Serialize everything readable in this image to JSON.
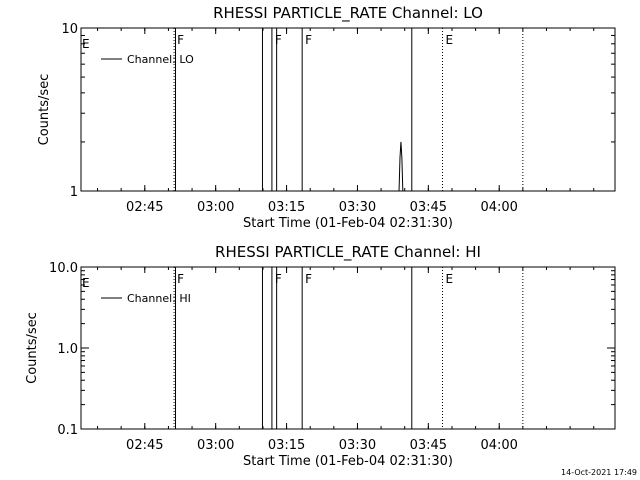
{
  "chart_data": [
    {
      "type": "line",
      "title": "RHESSI PARTICLE_RATE Channel: LO",
      "xlabel": "Start Time (01-Feb-04 02:31:30)",
      "ylabel": "Counts/sec",
      "x_unit": "minutes after 02:31:30",
      "xlim": [
        0,
        113
      ],
      "ylim": [
        1,
        10
      ],
      "yscale": "log",
      "x_ticks": [
        {
          "value": 13.5,
          "label": "02:45"
        },
        {
          "value": 28.5,
          "label": "03:00"
        },
        {
          "value": 43.5,
          "label": "03:15"
        },
        {
          "value": 58.5,
          "label": "03:30"
        },
        {
          "value": 73.5,
          "label": "03:45"
        },
        {
          "value": 88.5,
          "label": "04:00"
        }
      ],
      "y_ticks": [
        {
          "value": 1,
          "label": "1"
        },
        {
          "value": 10,
          "label": "10"
        }
      ],
      "legend": {
        "position": "top-left",
        "entries": [
          "Channel: LO"
        ]
      },
      "series": [
        {
          "name": "Channel: LO",
          "x": [
            67.3,
            67.5,
            67.7,
            67.9,
            68.1
          ],
          "y": [
            1,
            1.6,
            2.0,
            1.6,
            1
          ]
        }
      ],
      "event_lines": [
        {
          "x": 19.7,
          "style": "dotted",
          "label": "F"
        },
        {
          "x": 20.0,
          "style": "solid",
          "label": ""
        },
        {
          "x": 38.4,
          "style": "solid",
          "label": ""
        },
        {
          "x": 40.4,
          "style": "solid",
          "label": "F"
        },
        {
          "x": 41.4,
          "style": "solid",
          "label": ""
        },
        {
          "x": 46.8,
          "style": "solid",
          "label": "F"
        },
        {
          "x": 70.0,
          "style": "solid",
          "label": ""
        },
        {
          "x": 76.5,
          "style": "dotted",
          "label": "E"
        },
        {
          "x": 93.5,
          "style": "dotted",
          "label": ""
        }
      ],
      "edge_label": "E"
    },
    {
      "type": "line",
      "title": "RHESSI PARTICLE_RATE Channel: HI",
      "xlabel": "Start Time (01-Feb-04 02:31:30)",
      "ylabel": "Counts/sec",
      "x_unit": "minutes after 02:31:30",
      "xlim": [
        0,
        113
      ],
      "ylim": [
        0.1,
        10
      ],
      "yscale": "log",
      "x_ticks": [
        {
          "value": 13.5,
          "label": "02:45"
        },
        {
          "value": 28.5,
          "label": "03:00"
        },
        {
          "value": 43.5,
          "label": "03:15"
        },
        {
          "value": 58.5,
          "label": "03:30"
        },
        {
          "value": 73.5,
          "label": "03:45"
        },
        {
          "value": 88.5,
          "label": "04:00"
        }
      ],
      "y_ticks": [
        {
          "value": 0.1,
          "label": "0.1"
        },
        {
          "value": 1,
          "label": "1.0"
        },
        {
          "value": 10,
          "label": "10.0"
        }
      ],
      "legend": {
        "position": "top-left",
        "entries": [
          "Channel: HI"
        ]
      },
      "series": [
        {
          "name": "Channel: HI",
          "x": [],
          "y": []
        }
      ],
      "event_lines": [
        {
          "x": 19.7,
          "style": "dotted",
          "label": "F"
        },
        {
          "x": 20.0,
          "style": "solid",
          "label": ""
        },
        {
          "x": 38.4,
          "style": "solid",
          "label": ""
        },
        {
          "x": 40.4,
          "style": "solid",
          "label": "F"
        },
        {
          "x": 41.4,
          "style": "solid",
          "label": ""
        },
        {
          "x": 46.8,
          "style": "solid",
          "label": "F"
        },
        {
          "x": 70.0,
          "style": "solid",
          "label": ""
        },
        {
          "x": 76.5,
          "style": "dotted",
          "label": "E"
        },
        {
          "x": 93.5,
          "style": "dotted",
          "label": ""
        }
      ],
      "edge_label": "E"
    }
  ],
  "footer": {
    "timestamp": "14-Oct-2021 17:49"
  }
}
